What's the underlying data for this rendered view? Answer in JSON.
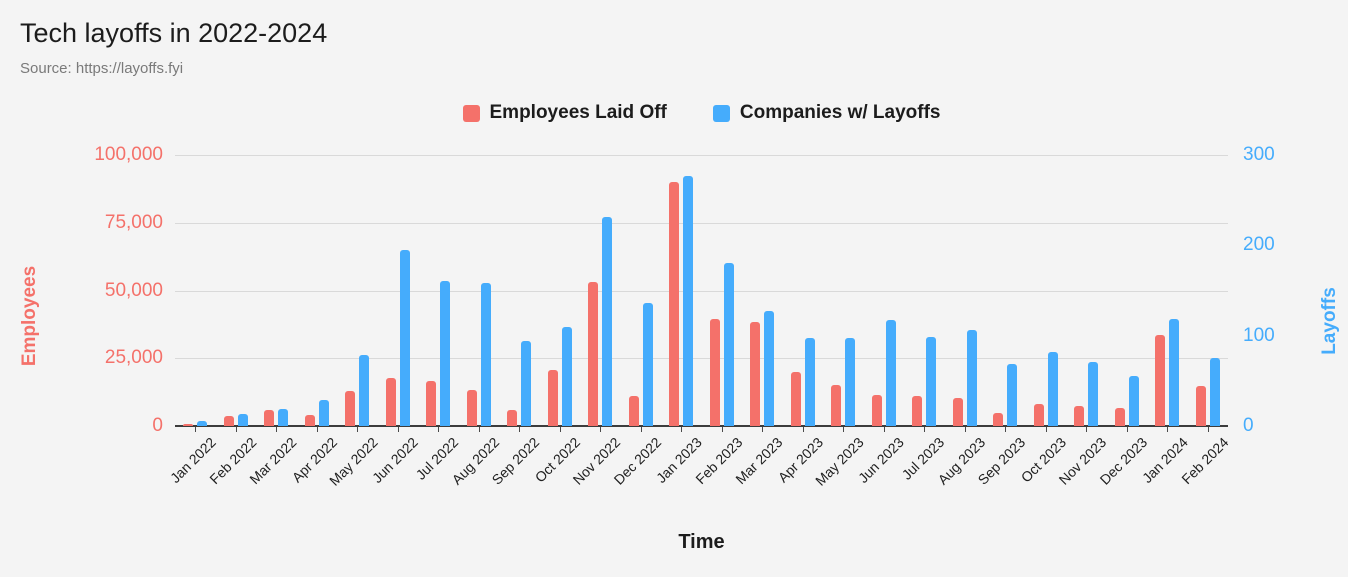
{
  "header": {
    "title": "Tech layoffs in 2022-2024",
    "source": "Source: https://layoffs.fyi"
  },
  "chart_data": {
    "type": "bar",
    "title": "Tech layoffs in 2022-2024",
    "source": "Source: https://layoffs.fyi",
    "xlabel": "Time",
    "legend_position": "top",
    "grid": true,
    "categories": [
      "Jan 2022",
      "Feb 2022",
      "Mar 2022",
      "Apr 2022",
      "May 2022",
      "Jun 2022",
      "Jul 2022",
      "Aug 2022",
      "Sep 2022",
      "Oct 2022",
      "Nov 2022",
      "Dec 2022",
      "Jan 2023",
      "Feb 2023",
      "Mar 2023",
      "Apr 2023",
      "May 2023",
      "Jun 2023",
      "Jul 2023",
      "Aug 2023",
      "Sep 2023",
      "Oct 2023",
      "Nov 2023",
      "Dec 2023",
      "Jan 2024",
      "Feb 2024"
    ],
    "series": [
      {
        "name": "Employees Laid Off",
        "axis": "left",
        "color": "#F4716A",
        "values": [
          600,
          3700,
          5900,
          4100,
          13000,
          17800,
          16600,
          13300,
          5900,
          20700,
          53200,
          11100,
          89900,
          39600,
          38500,
          20000,
          15200,
          11500,
          11100,
          10400,
          4800,
          8100,
          7400,
          6700,
          33700,
          14800
        ]
      },
      {
        "name": "Companies w/ Layoffs",
        "axis": "right",
        "color": "#45ACFC",
        "values": [
          5,
          13,
          19,
          29,
          79,
          195,
          160,
          158,
          94,
          110,
          231,
          136,
          277,
          180,
          127,
          97,
          97,
          117,
          99,
          106,
          69,
          82,
          71,
          55,
          118,
          75
        ]
      }
    ],
    "axes": {
      "left": {
        "label": "Employees",
        "color": "#F4716A",
        "min": 0,
        "max": 100000,
        "tick_values": [
          0,
          25000,
          50000,
          75000,
          100000
        ],
        "tick_labels": [
          "0",
          "25,000",
          "50,000",
          "75,000",
          "100,000"
        ]
      },
      "right": {
        "label": "Layoffs",
        "color": "#45ACFC",
        "min": 0,
        "max": 300,
        "tick_values": [
          0,
          100,
          200,
          300
        ],
        "tick_labels": [
          "0",
          "100",
          "200",
          "300"
        ]
      }
    }
  }
}
